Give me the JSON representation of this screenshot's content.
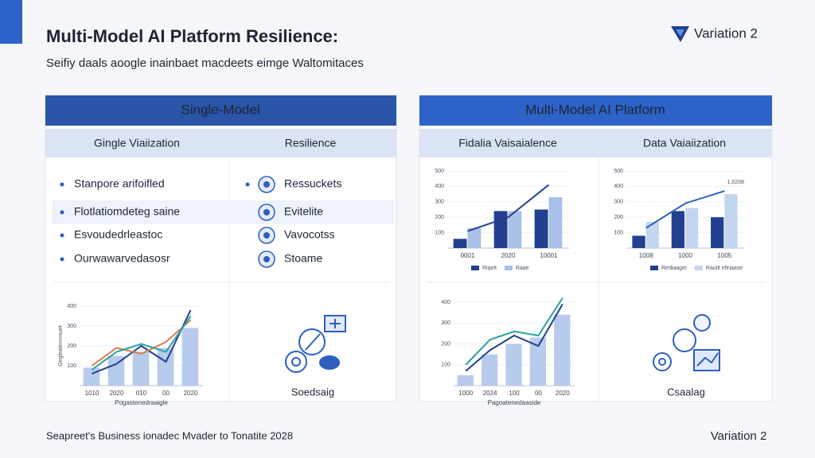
{
  "header": {
    "title": "Multi-Model AI Platform Resilience:",
    "subtitle": "Seifiy daals aoogle inainbaet macdeets eimge Waltomitaces",
    "logo": "Variation 2"
  },
  "panels": [
    {
      "title": "Single-Model",
      "columns": [
        "Gingle Viaiization",
        "Resilience"
      ],
      "bullets": [
        "Stanpore arifoifled",
        "Flotlatiomdeteg saine",
        "Esvoudedrleastoc",
        "Ourwawarvedasosr"
      ],
      "features": [
        "Ressuckets",
        "Evitelite",
        "Vavocotss",
        "Stoame"
      ],
      "chart": {
        "type": "bar",
        "y_label": "Gegleatenrosuet",
        "x_label": "Pogastenedraaigle",
        "categories": [
          "1010",
          "2020",
          "010",
          "00",
          "2020"
        ],
        "ylim": [
          0,
          400
        ],
        "yticks": [
          100,
          200,
          300,
          400
        ],
        "bars": [
          {
            "color": "#b7cbec",
            "values": [
              90,
              150,
              170,
              190,
              290
            ]
          }
        ],
        "lines": [
          {
            "color": "#1f3f8f",
            "values": [
              60,
              110,
              200,
              120,
              380
            ]
          },
          {
            "color": "#e07b4a",
            "values": [
              100,
              190,
              160,
              220,
              330
            ]
          },
          {
            "color": "#2aa3a0",
            "values": [
              80,
              170,
              210,
              170,
              350
            ]
          }
        ]
      },
      "illustration_label": "Soedsaig"
    },
    {
      "title": "Multi-Model AI Platform",
      "columns": [
        "Fidalia Vaisaialence",
        "Data Vaiaiization"
      ],
      "charts": [
        {
          "type": "bar",
          "categories": [
            "0001",
            "2020",
            "10001"
          ],
          "ylim": [
            0,
            500
          ],
          "yticks": [
            100,
            200,
            300,
            400,
            500
          ],
          "bars": [
            {
              "name": "Riqelt",
              "color": "#22408f",
              "values": [
                60,
                240,
                250
              ]
            },
            {
              "name": "Raae",
              "color": "#a9c0e8",
              "values": [
                130,
                240,
                330
              ]
            }
          ],
          "lines": [
            {
              "color": "#22408f",
              "values": [
                110,
                200,
                410
              ]
            }
          ]
        },
        {
          "type": "bar",
          "annotation": "1.0208",
          "categories": [
            "1008",
            "1000",
            "1005"
          ],
          "ylim": [
            0,
            500
          ],
          "yticks": [
            100,
            200,
            300,
            400,
            500
          ],
          "bars": [
            {
              "name": "Rediaaget",
              "color": "#22408f",
              "values": [
                80,
                240,
                200
              ]
            },
            {
              "name": "Raoilt efiriaase",
              "color": "#c4d5f0",
              "values": [
                170,
                260,
                350
              ]
            }
          ],
          "lines": [
            {
              "color": "#2d62c4",
              "values": [
                130,
                290,
                370
              ]
            }
          ]
        },
        {
          "type": "bar",
          "x_label": "Pagoatenedaaside",
          "categories": [
            "1000",
            "2024",
            "100",
            "00",
            "2020"
          ],
          "ylim": [
            0,
            400
          ],
          "yticks": [
            100,
            200,
            300,
            400
          ],
          "bars": [
            {
              "color": "#b7cbec",
              "values": [
                50,
                150,
                200,
                230,
                340
              ]
            }
          ],
          "lines": [
            {
              "color": "#2aa3a0",
              "values": [
                100,
                220,
                260,
                240,
                420
              ]
            },
            {
              "color": "#1f3f8f",
              "values": [
                70,
                170,
                240,
                190,
                390
              ]
            }
          ]
        }
      ],
      "illustration_label": "Csaalag"
    }
  ],
  "footer": {
    "source": "Seapreet's Business ionadec Mvader to Tonatite 2028",
    "variation": "Variation 2"
  }
}
